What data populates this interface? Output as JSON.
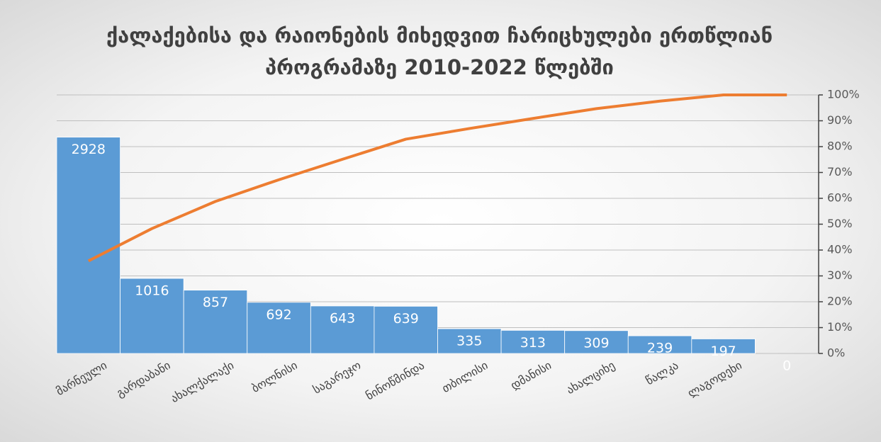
{
  "chart_data": {
    "type": "pareto",
    "title_lines": [
      "ქალაქებისა და რაიონების მიხედვით ჩარიცხულები ერთწლიან",
      "პროგრამაზე 2010-2022 წლებში"
    ],
    "categories": [
      "მარნეული",
      "გარდაბანი",
      "ახალქალაქი",
      "ბოლნისი",
      "საგარეჯო",
      "ნინოწმინდა",
      "თბილისი",
      "დმანისი",
      "ახალციხე",
      "წალკა",
      "ლაგოდეხი",
      null
    ],
    "bars": {
      "color": "#5b9bd5",
      "values": [
        2928,
        1016,
        857,
        692,
        643,
        639,
        335,
        313,
        309,
        239,
        197,
        0
      ]
    },
    "line": {
      "color": "#ed7d31",
      "axis": "y2",
      "values": [
        35.8,
        48.3,
        58.8,
        67.2,
        75.1,
        82.9,
        87.0,
        90.9,
        94.7,
        97.6,
        100,
        100
      ]
    },
    "ylim": [
      0,
      3500
    ],
    "y2lim": [
      0,
      100
    ],
    "y2ticks": [
      {
        "value": 0,
        "label": "0%"
      },
      {
        "value": 10,
        "label": "10%"
      },
      {
        "value": 20,
        "label": "20%"
      },
      {
        "value": 30,
        "label": "30%"
      },
      {
        "value": 40,
        "label": "40%"
      },
      {
        "value": 50,
        "label": "50%"
      },
      {
        "value": 60,
        "label": "60%"
      },
      {
        "value": 70,
        "label": "70%"
      },
      {
        "value": 80,
        "label": "80%"
      },
      {
        "value": 90,
        "label": "90%"
      },
      {
        "value": 100,
        "label": "100%"
      }
    ],
    "grid": true
  }
}
